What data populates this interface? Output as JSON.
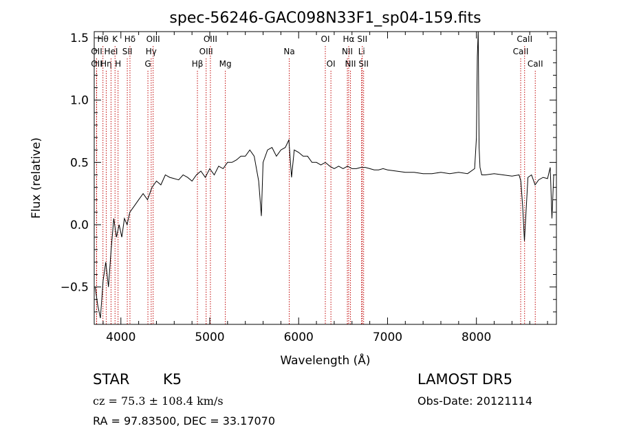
{
  "chart_data": {
    "type": "line",
    "title": "spec-56246-GAC098N33F1_sp04-159.fits",
    "xlabel": "Wavelength (Å)",
    "ylabel": "Flux (relative)",
    "xlim": [
      3700,
      8900
    ],
    "ylim": [
      -0.8,
      1.55
    ],
    "xticks": [
      4000,
      5000,
      6000,
      7000,
      8000
    ],
    "xtick_labels": [
      "4000",
      "5000",
      "6000",
      "7000",
      "8000"
    ],
    "yticks": [
      -0.5,
      0.0,
      0.5,
      1.0,
      1.5
    ],
    "ytick_labels": [
      "−0.5",
      "0.0",
      "0.5",
      "1.0",
      "1.5"
    ],
    "grid": false,
    "line_color": "#000000",
    "marker_color": "#c00000",
    "series": [
      {
        "x": [
          3710,
          3740,
          3770,
          3800,
          3830,
          3860,
          3890,
          3920,
          3950,
          3980,
          4010,
          4040,
          4070,
          4100,
          4150,
          4200,
          4250,
          4300,
          4350,
          4400,
          4450,
          4500,
          4550,
          4600,
          4650,
          4700,
          4750,
          4800,
          4850,
          4900,
          4950,
          5000,
          5050,
          5100,
          5150,
          5200,
          5250,
          5300,
          5350,
          5400,
          5450,
          5500,
          5550,
          5580,
          5600,
          5650,
          5700,
          5750,
          5800,
          5850,
          5890,
          5920,
          5950,
          6000,
          6050,
          6100,
          6150,
          6200,
          6250,
          6300,
          6350,
          6400,
          6450,
          6500,
          6550,
          6600,
          6650,
          6700,
          6750,
          6800,
          6850,
          6900,
          6950,
          7000,
          7100,
          7200,
          7300,
          7400,
          7500,
          7600,
          7700,
          7800,
          7900,
          7980,
          8000,
          8010,
          8020,
          8030,
          8040,
          8060,
          8100,
          8200,
          8300,
          8400,
          8480,
          8500,
          8520,
          8540,
          8580,
          8620,
          8660,
          8700,
          8750,
          8800,
          8830,
          8850,
          8870,
          8900
        ],
        "y": [
          -0.5,
          -0.65,
          -0.75,
          -0.45,
          -0.3,
          -0.5,
          -0.2,
          0.05,
          -0.1,
          0.0,
          -0.1,
          0.05,
          0.0,
          0.1,
          0.15,
          0.2,
          0.25,
          0.2,
          0.3,
          0.35,
          0.32,
          0.4,
          0.38,
          0.37,
          0.36,
          0.4,
          0.38,
          0.35,
          0.4,
          0.43,
          0.38,
          0.45,
          0.4,
          0.47,
          0.45,
          0.5,
          0.5,
          0.52,
          0.55,
          0.55,
          0.6,
          0.55,
          0.35,
          0.07,
          0.5,
          0.6,
          0.62,
          0.55,
          0.6,
          0.62,
          0.68,
          0.38,
          0.6,
          0.58,
          0.55,
          0.55,
          0.5,
          0.5,
          0.48,
          0.5,
          0.47,
          0.45,
          0.47,
          0.45,
          0.47,
          0.45,
          0.45,
          0.46,
          0.46,
          0.45,
          0.44,
          0.44,
          0.45,
          0.44,
          0.43,
          0.42,
          0.42,
          0.41,
          0.41,
          0.42,
          0.41,
          0.42,
          0.41,
          0.45,
          0.7,
          1.35,
          1.55,
          0.62,
          0.46,
          0.4,
          0.4,
          0.41,
          0.4,
          0.39,
          0.4,
          0.35,
          0.15,
          -0.13,
          0.38,
          0.4,
          0.32,
          0.36,
          0.38,
          0.37,
          0.46,
          0.05,
          0.4,
          0.4
        ]
      }
    ],
    "line_markers": [
      {
        "wl": 3727,
        "label": "OII",
        "row": 2
      },
      {
        "wl": 3727,
        "label": "OII",
        "row": 1
      },
      {
        "wl": 3798,
        "label": "Hθ",
        "row": 0
      },
      {
        "wl": 3835,
        "label": "Hη",
        "row": 2
      },
      {
        "wl": 3889,
        "label": "HeI",
        "row": 1
      },
      {
        "wl": 3934,
        "label": "K",
        "row": 0
      },
      {
        "wl": 3968,
        "label": "H",
        "row": 2
      },
      {
        "wl": 4072,
        "label": "SII",
        "row": 1
      },
      {
        "wl": 4102,
        "label": "Hδ",
        "row": 0
      },
      {
        "wl": 4304,
        "label": "G",
        "row": 2
      },
      {
        "wl": 4341,
        "label": "Hγ",
        "row": 1
      },
      {
        "wl": 4363,
        "label": "OIII",
        "row": 0
      },
      {
        "wl": 4861,
        "label": "Hβ",
        "row": 2
      },
      {
        "wl": 4959,
        "label": "OIII",
        "row": 1
      },
      {
        "wl": 5007,
        "label": "OIII",
        "row": 0
      },
      {
        "wl": 5175,
        "label": "Mg",
        "row": 2
      },
      {
        "wl": 5894,
        "label": "Na",
        "row": 1
      },
      {
        "wl": 6300,
        "label": "OI",
        "row": 0
      },
      {
        "wl": 6363,
        "label": "OI",
        "row": 2
      },
      {
        "wl": 6548,
        "label": "NII",
        "row": 1
      },
      {
        "wl": 6563,
        "label": "Hα",
        "row": 0
      },
      {
        "wl": 6583,
        "label": "NII",
        "row": 2
      },
      {
        "wl": 6708,
        "label": "Li",
        "row": 1
      },
      {
        "wl": 6716,
        "label": "SII",
        "row": 0
      },
      {
        "wl": 6731,
        "label": "SII",
        "row": 2
      },
      {
        "wl": 8498,
        "label": "CaII",
        "row": 1
      },
      {
        "wl": 8542,
        "label": "CaII",
        "row": 0
      },
      {
        "wl": 8662,
        "label": "CaII",
        "row": 2
      }
    ]
  },
  "info": {
    "object_class": "STAR",
    "subclass": "K5",
    "redshift": "cz = 75.3 ± 108.4 km/s",
    "coords": "RA =  97.83500, DEC =  33.17070",
    "survey": "LAMOST  DR5",
    "obs_date": "Obs-Date: 20121114"
  }
}
